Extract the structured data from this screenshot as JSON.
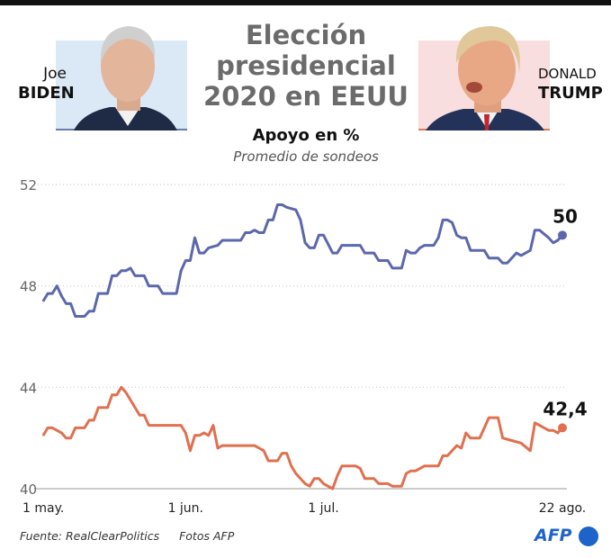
{
  "header": {
    "title_lines": [
      "Elección",
      "presidencial",
      "2020 en EEUU"
    ],
    "subtitle": "Apoyo en %",
    "subtitle2": "Promedio de sondeos"
  },
  "candidates": {
    "biden": {
      "first": "Joe",
      "last": "Biden",
      "color": "#5b68ad",
      "panel_color": "#dbe8f6"
    },
    "trump": {
      "first": "Donald",
      "last": "Trump",
      "color": "#e0704f",
      "panel_color": "#f8dede"
    }
  },
  "footer": {
    "source": "Fuente: RealClearPolitics",
    "photos": "Fotos AFP",
    "logo": "AFP"
  },
  "chart_data": {
    "type": "line",
    "title": "Apoyo en %",
    "subtitle": "Promedio de sondeos",
    "ylim": [
      40,
      52
    ],
    "y_ticks": [
      "52",
      "48",
      "44",
      "40"
    ],
    "y_tick_values": [
      52,
      48,
      44,
      40
    ],
    "xlim": [
      "2020-05-01",
      "2020-08-22"
    ],
    "x_ticks": [
      {
        "date": "2020-05-01",
        "label": "1 may."
      },
      {
        "date": "2020-06-01",
        "label": "1 jun."
      },
      {
        "date": "2020-07-01",
        "label": "1 jul."
      },
      {
        "date": "2020-08-22",
        "label": "22 ago."
      }
    ],
    "grid": "horizontal dotted",
    "series": [
      {
        "name": "Joe Biden",
        "color": "#5b68ad",
        "end_label": "50",
        "points": [
          [
            "2020-05-01",
            47.4
          ],
          [
            "2020-05-02",
            47.7
          ],
          [
            "2020-05-03",
            47.7
          ],
          [
            "2020-05-04",
            48.0
          ],
          [
            "2020-05-05",
            47.6
          ],
          [
            "2020-05-06",
            47.3
          ],
          [
            "2020-05-07",
            47.3
          ],
          [
            "2020-05-08",
            46.8
          ],
          [
            "2020-05-10",
            46.8
          ],
          [
            "2020-05-11",
            47.0
          ],
          [
            "2020-05-12",
            47.0
          ],
          [
            "2020-05-13",
            47.7
          ],
          [
            "2020-05-15",
            47.7
          ],
          [
            "2020-05-16",
            48.4
          ],
          [
            "2020-05-17",
            48.4
          ],
          [
            "2020-05-18",
            48.6
          ],
          [
            "2020-05-19",
            48.6
          ],
          [
            "2020-05-20",
            48.7
          ],
          [
            "2020-05-21",
            48.4
          ],
          [
            "2020-05-23",
            48.4
          ],
          [
            "2020-05-24",
            48.0
          ],
          [
            "2020-05-26",
            48.0
          ],
          [
            "2020-05-27",
            47.7
          ],
          [
            "2020-05-30",
            47.7
          ],
          [
            "2020-05-31",
            48.6
          ],
          [
            "2020-06-01",
            49.0
          ],
          [
            "2020-06-02",
            49.0
          ],
          [
            "2020-06-03",
            49.9
          ],
          [
            "2020-06-04",
            49.3
          ],
          [
            "2020-06-05",
            49.3
          ],
          [
            "2020-06-06",
            49.5
          ],
          [
            "2020-06-08",
            49.6
          ],
          [
            "2020-06-09",
            49.8
          ],
          [
            "2020-06-13",
            49.8
          ],
          [
            "2020-06-14",
            50.1
          ],
          [
            "2020-06-15",
            50.1
          ],
          [
            "2020-06-16",
            50.2
          ],
          [
            "2020-06-17",
            50.1
          ],
          [
            "2020-06-18",
            50.1
          ],
          [
            "2020-06-19",
            50.6
          ],
          [
            "2020-06-20",
            50.6
          ],
          [
            "2020-06-21",
            51.2
          ],
          [
            "2020-06-22",
            51.2
          ],
          [
            "2020-06-23",
            51.1
          ],
          [
            "2020-06-25",
            51.0
          ],
          [
            "2020-06-26",
            50.6
          ],
          [
            "2020-06-27",
            49.7
          ],
          [
            "2020-06-28",
            49.5
          ],
          [
            "2020-06-29",
            49.5
          ],
          [
            "2020-06-30",
            50.0
          ],
          [
            "2020-07-01",
            50.0
          ],
          [
            "2020-07-03",
            49.3
          ],
          [
            "2020-07-04",
            49.3
          ],
          [
            "2020-07-05",
            49.6
          ],
          [
            "2020-07-09",
            49.6
          ],
          [
            "2020-07-10",
            49.3
          ],
          [
            "2020-07-12",
            49.3
          ],
          [
            "2020-07-13",
            49.0
          ],
          [
            "2020-07-15",
            49.0
          ],
          [
            "2020-07-16",
            48.7
          ],
          [
            "2020-07-18",
            48.7
          ],
          [
            "2020-07-19",
            49.4
          ],
          [
            "2020-07-20",
            49.3
          ],
          [
            "2020-07-21",
            49.3
          ],
          [
            "2020-07-22",
            49.5
          ],
          [
            "2020-07-23",
            49.6
          ],
          [
            "2020-07-25",
            49.6
          ],
          [
            "2020-07-26",
            49.9
          ],
          [
            "2020-07-27",
            50.6
          ],
          [
            "2020-07-28",
            50.6
          ],
          [
            "2020-07-29",
            50.5
          ],
          [
            "2020-07-30",
            50.0
          ],
          [
            "2020-07-31",
            49.9
          ],
          [
            "2020-08-01",
            49.9
          ],
          [
            "2020-08-02",
            49.4
          ],
          [
            "2020-08-05",
            49.4
          ],
          [
            "2020-08-06",
            49.1
          ],
          [
            "2020-08-08",
            49.1
          ],
          [
            "2020-08-09",
            48.9
          ],
          [
            "2020-08-10",
            48.9
          ],
          [
            "2020-08-12",
            49.3
          ],
          [
            "2020-08-13",
            49.2
          ],
          [
            "2020-08-15",
            49.4
          ],
          [
            "2020-08-16",
            50.2
          ],
          [
            "2020-08-17",
            50.2
          ],
          [
            "2020-08-19",
            49.9
          ],
          [
            "2020-08-20",
            49.7
          ],
          [
            "2020-08-21",
            49.8
          ],
          [
            "2020-08-22",
            50.0
          ]
        ]
      },
      {
        "name": "Donald Trump",
        "color": "#e0704f",
        "end_label": "42,4",
        "points": [
          [
            "2020-05-01",
            42.1
          ],
          [
            "2020-05-02",
            42.4
          ],
          [
            "2020-05-03",
            42.4
          ],
          [
            "2020-05-04",
            42.3
          ],
          [
            "2020-05-05",
            42.2
          ],
          [
            "2020-05-06",
            42.0
          ],
          [
            "2020-05-07",
            42.0
          ],
          [
            "2020-05-08",
            42.4
          ],
          [
            "2020-05-10",
            42.4
          ],
          [
            "2020-05-11",
            42.7
          ],
          [
            "2020-05-12",
            42.7
          ],
          [
            "2020-05-13",
            43.2
          ],
          [
            "2020-05-15",
            43.2
          ],
          [
            "2020-05-16",
            43.7
          ],
          [
            "2020-05-17",
            43.7
          ],
          [
            "2020-05-18",
            44.0
          ],
          [
            "2020-05-19",
            43.8
          ],
          [
            "2020-05-21",
            43.2
          ],
          [
            "2020-05-22",
            42.9
          ],
          [
            "2020-05-23",
            42.9
          ],
          [
            "2020-05-24",
            42.5
          ],
          [
            "2020-05-31",
            42.5
          ],
          [
            "2020-06-01",
            42.2
          ],
          [
            "2020-06-02",
            41.5
          ],
          [
            "2020-06-03",
            42.1
          ],
          [
            "2020-06-04",
            42.1
          ],
          [
            "2020-06-05",
            42.2
          ],
          [
            "2020-06-06",
            42.1
          ],
          [
            "2020-06-07",
            42.5
          ],
          [
            "2020-06-08",
            41.6
          ],
          [
            "2020-06-09",
            41.7
          ],
          [
            "2020-06-16",
            41.7
          ],
          [
            "2020-06-18",
            41.5
          ],
          [
            "2020-06-19",
            41.1
          ],
          [
            "2020-06-21",
            41.1
          ],
          [
            "2020-06-22",
            41.4
          ],
          [
            "2020-06-23",
            41.4
          ],
          [
            "2020-06-24",
            40.9
          ],
          [
            "2020-06-25",
            40.6
          ],
          [
            "2020-06-27",
            40.2
          ],
          [
            "2020-06-28",
            40.1
          ],
          [
            "2020-06-29",
            40.4
          ],
          [
            "2020-06-30",
            40.4
          ],
          [
            "2020-07-01",
            40.2
          ],
          [
            "2020-07-03",
            40.0
          ],
          [
            "2020-07-04",
            40.5
          ],
          [
            "2020-07-05",
            40.9
          ],
          [
            "2020-07-08",
            40.9
          ],
          [
            "2020-07-09",
            40.8
          ],
          [
            "2020-07-10",
            40.4
          ],
          [
            "2020-07-12",
            40.4
          ],
          [
            "2020-07-13",
            40.2
          ],
          [
            "2020-07-15",
            40.2
          ],
          [
            "2020-07-16",
            40.1
          ],
          [
            "2020-07-18",
            40.1
          ],
          [
            "2020-07-19",
            40.6
          ],
          [
            "2020-07-20",
            40.7
          ],
          [
            "2020-07-21",
            40.7
          ],
          [
            "2020-07-23",
            40.9
          ],
          [
            "2020-07-26",
            40.9
          ],
          [
            "2020-07-27",
            41.3
          ],
          [
            "2020-07-28",
            41.3
          ],
          [
            "2020-07-30",
            41.7
          ],
          [
            "2020-07-31",
            41.6
          ],
          [
            "2020-08-01",
            42.2
          ],
          [
            "2020-08-02",
            42.0
          ],
          [
            "2020-08-04",
            42.0
          ],
          [
            "2020-08-06",
            42.8
          ],
          [
            "2020-08-08",
            42.8
          ],
          [
            "2020-08-09",
            42.0
          ],
          [
            "2020-08-11",
            41.9
          ],
          [
            "2020-08-13",
            41.8
          ],
          [
            "2020-08-15",
            41.5
          ],
          [
            "2020-08-16",
            42.6
          ],
          [
            "2020-08-17",
            42.5
          ],
          [
            "2020-08-19",
            42.3
          ],
          [
            "2020-08-20",
            42.3
          ],
          [
            "2020-08-21",
            42.2
          ],
          [
            "2020-08-22",
            42.4
          ]
        ]
      }
    ]
  }
}
